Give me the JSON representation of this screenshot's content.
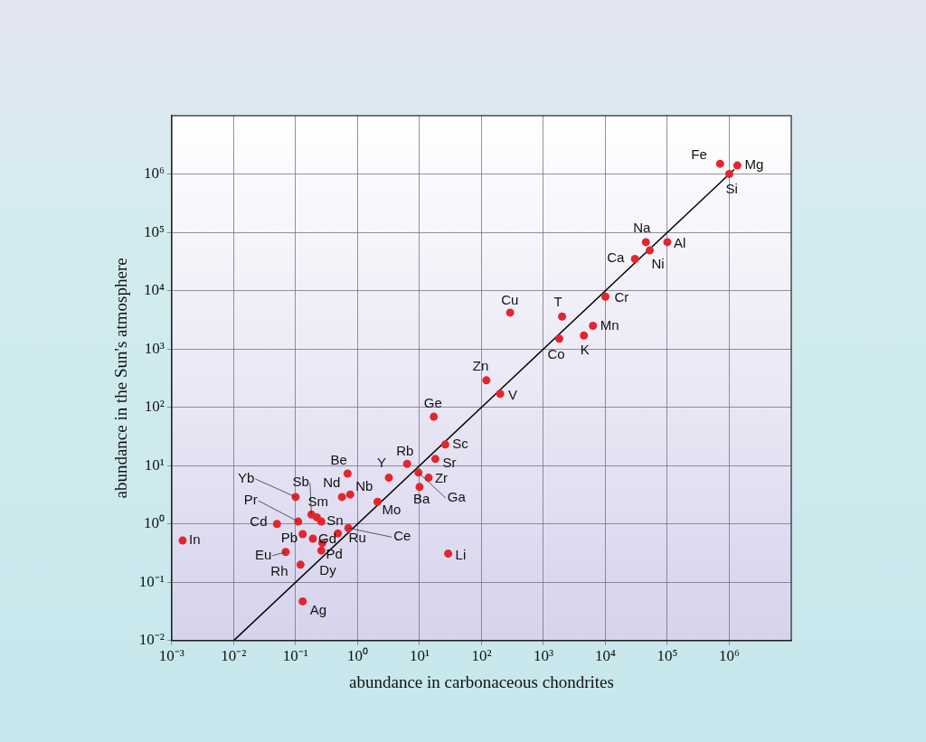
{
  "chart_data": {
    "type": "scatter",
    "x_label": "abundance in carbonaceous chondrites",
    "y_label": "abundance in the Sun's atmosphere",
    "log": true,
    "grid": true,
    "xlim": [
      0.001,
      10000000
    ],
    "ylim": [
      0.01,
      10000000
    ],
    "xticks": [
      {
        "value": 0.001,
        "label": "10⁻³"
      },
      {
        "value": 0.01,
        "label": "10⁻²"
      },
      {
        "value": 0.1,
        "label": "10⁻¹"
      },
      {
        "value": 1,
        "label": "10⁰"
      },
      {
        "value": 10,
        "label": "10¹"
      },
      {
        "value": 100,
        "label": "10²"
      },
      {
        "value": 1000,
        "label": "10³"
      },
      {
        "value": 10000,
        "label": "10⁴"
      },
      {
        "value": 100000,
        "label": "10⁵"
      },
      {
        "value": 1000000,
        "label": "10⁶"
      }
    ],
    "yticks": [
      {
        "value": 0.01,
        "label": "10⁻²"
      },
      {
        "value": 0.1,
        "label": "10⁻¹"
      },
      {
        "value": 1,
        "label": "10⁰"
      },
      {
        "value": 10,
        "label": "10¹"
      },
      {
        "value": 100,
        "label": "10²"
      },
      {
        "value": 1000,
        "label": "10³"
      },
      {
        "value": 10000,
        "label": "10⁴"
      },
      {
        "value": 100000,
        "label": "10⁵"
      },
      {
        "value": 1000000,
        "label": "10⁶"
      }
    ],
    "points": {
      "labels": [
        "Fe",
        "Mg",
        "Si",
        "Na",
        "Al",
        "Ca",
        "Ni",
        "Cu",
        "T",
        "Cr",
        "Mn",
        "Co",
        "K",
        "Zn",
        "V",
        "Ge",
        "Sc",
        "Rb",
        "Sr",
        "Y",
        "Zr",
        "Ba",
        "Ga",
        "Be",
        "Nb",
        "Nd",
        "Mo",
        "Yb",
        "Sb",
        "Sm",
        "Sn",
        "Pr",
        "Cd",
        "Pb",
        "Gd",
        "Eu",
        "Pd",
        "Dy",
        "Rh",
        "Ru",
        "Ce",
        "Ag",
        "In",
        "Li"
      ],
      "x": [
        710000,
        1350000,
        1000000,
        45000,
        100000,
        30000,
        52000,
        290,
        2000,
        10000,
        6300,
        1800,
        4500,
        120,
        200,
        17,
        26,
        6.3,
        18,
        3.2,
        14,
        10,
        9.6,
        0.69,
        0.76,
        0.56,
        2.1,
        0.1,
        0.18,
        0.22,
        0.26,
        0.11,
        0.05,
        0.13,
        0.19,
        0.069,
        0.27,
        0.26,
        0.12,
        0.48,
        0.71,
        0.13,
        0.0015,
        29
      ],
      "y": [
        1500000,
        1400000,
        1000000,
        68000,
        68000,
        35000,
        49000,
        4200,
        3600,
        7900,
        2500,
        1500,
        1700,
        290,
        170,
        69,
        23,
        10.7,
        13,
        6.2,
        6.2,
        4.3,
        7.6,
        7.3,
        3.2,
        2.9,
        2.4,
        2.9,
        1.45,
        1.3,
        1.1,
        1.1,
        1.0,
        0.67,
        0.56,
        0.33,
        0.47,
        0.35,
        0.2,
        0.69,
        0.85,
        0.047,
        0.52,
        0.31
      ],
      "color": "#e3262e",
      "marker": "circle"
    },
    "line": {
      "x": [
        0.01,
        1200000
      ],
      "y": [
        0.01,
        1200000
      ],
      "color": "#000000",
      "line_style": "solid"
    }
  }
}
